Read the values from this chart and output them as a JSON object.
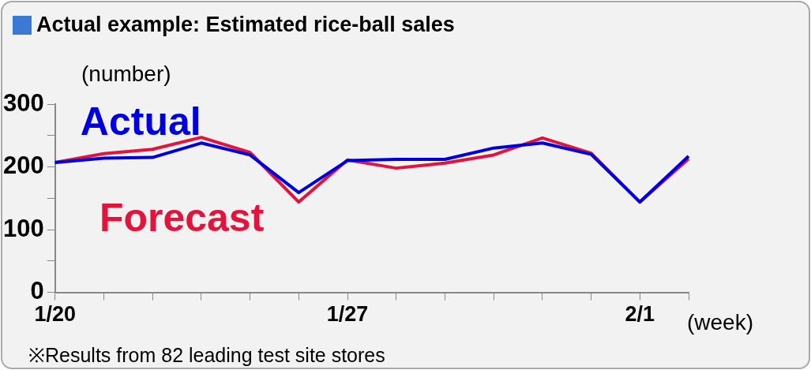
{
  "chart_data": {
    "type": "line",
    "title": "Actual example: Estimated rice-ball sales",
    "ylabel": "(number)",
    "xlabel": "(week)",
    "annotations": [
      "※Results from 82 leading test site stores"
    ],
    "categories": [
      "1/20",
      null,
      null,
      null,
      null,
      null,
      "1/27",
      null,
      null,
      null,
      null,
      null,
      "2/1",
      null
    ],
    "series": [
      {
        "name": "Actual",
        "color": "#0000dd",
        "values": [
          207,
          214,
          215,
          238,
          219,
          159,
          210,
          212,
          212,
          230,
          238,
          220,
          144,
          217
        ]
      },
      {
        "name": "Forecast",
        "color": "#e0143c",
        "values": [
          207,
          221,
          228,
          247,
          223,
          144,
          211,
          198,
          206,
          219,
          246,
          222,
          144,
          213
        ]
      }
    ],
    "ylim": [
      0,
      300
    ],
    "yticks": [
      0,
      {
        "value": 50,
        "label": null
      },
      100,
      {
        "value": 150,
        "label": null
      },
      200,
      {
        "value": 250,
        "label": null
      },
      300
    ],
    "grid": false,
    "legend": false,
    "marker": "none",
    "line_style": "solid"
  }
}
